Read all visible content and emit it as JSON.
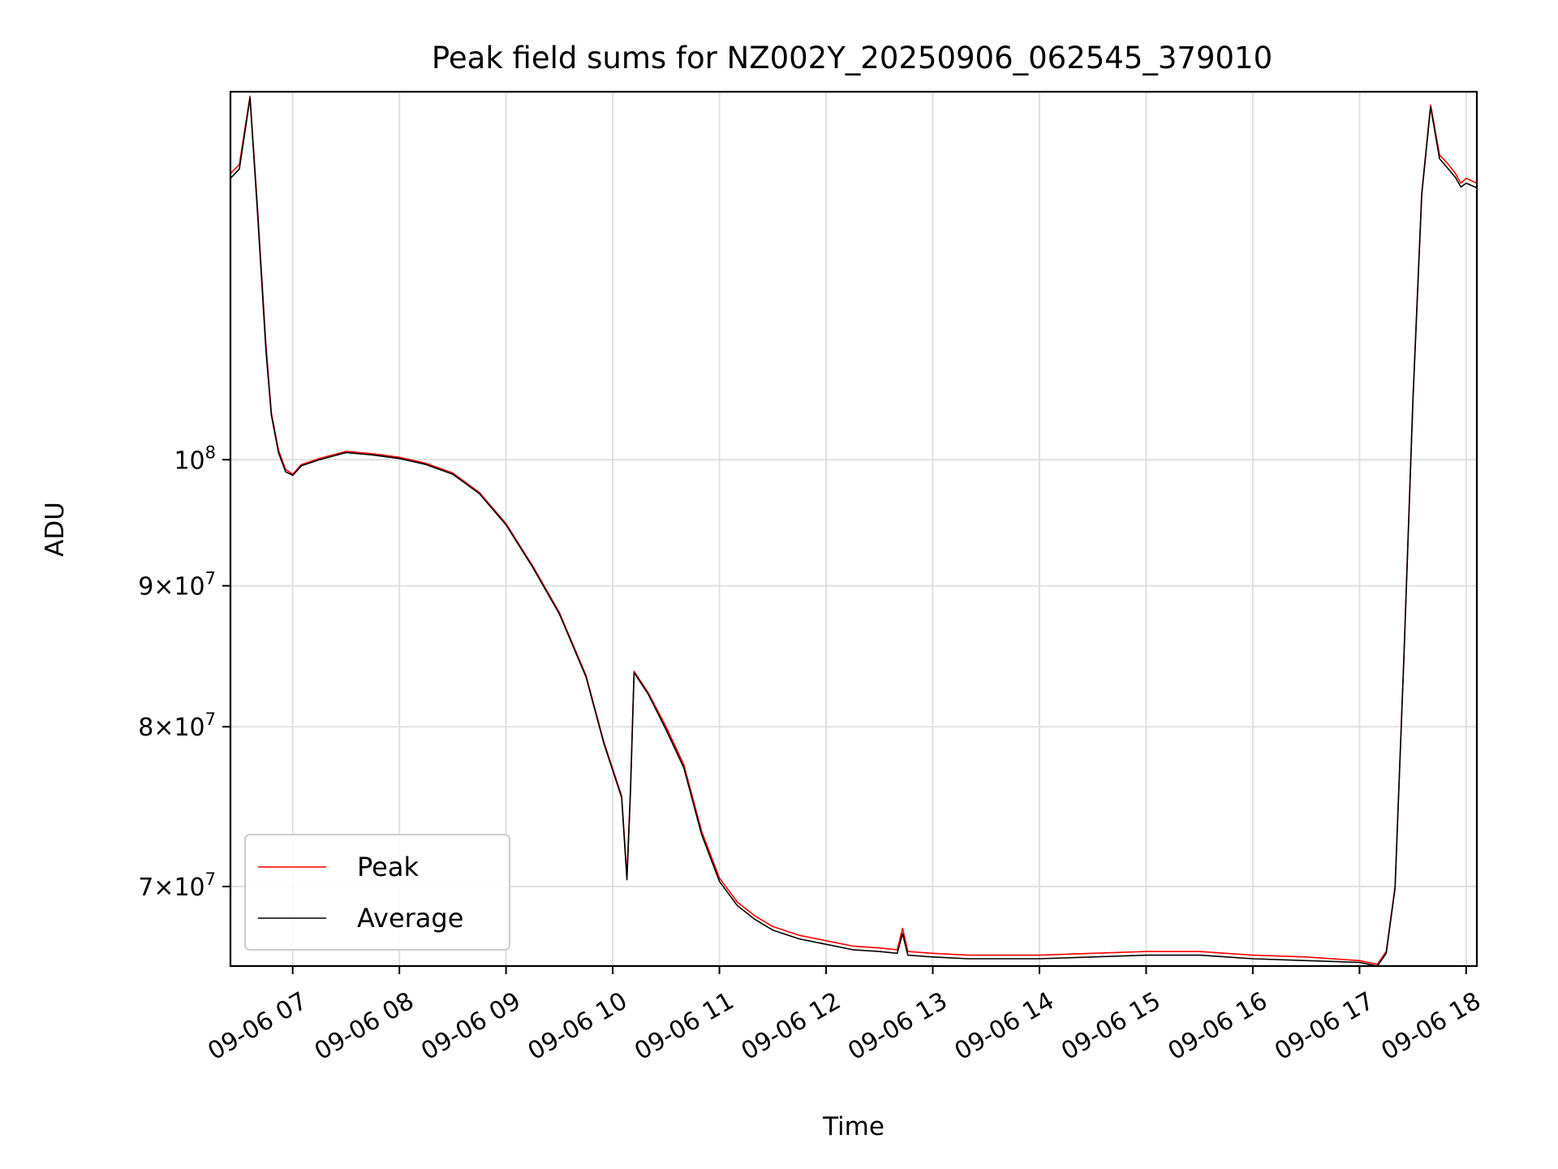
{
  "chart_data": {
    "type": "line",
    "title": "Peak field sums for NZ002Y_20250906_062545_379010",
    "xlabel": "Time",
    "ylabel": "ADU",
    "yscale": "log",
    "grid": true,
    "legend_position": "lower-left",
    "xlim": [
      "09-06 06:25",
      "09-06 18:06"
    ],
    "ylim": [
      65500000,
      136000000
    ],
    "x_ticks": [
      {
        "value": "09-06 07:00",
        "label": "09-06 07"
      },
      {
        "value": "09-06 08:00",
        "label": "09-06 08"
      },
      {
        "value": "09-06 09:00",
        "label": "09-06 09"
      },
      {
        "value": "09-06 10:00",
        "label": "09-06 10"
      },
      {
        "value": "09-06 11:00",
        "label": "09-06 11"
      },
      {
        "value": "09-06 12:00",
        "label": "09-06 12"
      },
      {
        "value": "09-06 13:00",
        "label": "09-06 13"
      },
      {
        "value": "09-06 14:00",
        "label": "09-06 14"
      },
      {
        "value": "09-06 15:00",
        "label": "09-06 15"
      },
      {
        "value": "09-06 16:00",
        "label": "09-06 16"
      },
      {
        "value": "09-06 17:00",
        "label": "09-06 17"
      },
      {
        "value": "09-06 18:00",
        "label": "09-06 18"
      }
    ],
    "y_ticks": [
      {
        "value": 70000000,
        "mantissa": "7",
        "times": "×",
        "base": "10",
        "exp": "7"
      },
      {
        "value": 80000000,
        "mantissa": "8",
        "times": "×",
        "base": "10",
        "exp": "7"
      },
      {
        "value": 90000000,
        "mantissa": "9",
        "times": "×",
        "base": "10",
        "exp": "7"
      },
      {
        "value": 100000000,
        "mantissa": "",
        "times": "",
        "base": "10",
        "exp": "8"
      }
    ],
    "series": [
      {
        "name": "Peak",
        "color": "#ff0000",
        "x": [
          "09-06 06:25",
          "09-06 06:30",
          "09-06 06:36",
          "09-06 06:40",
          "09-06 06:45",
          "09-06 06:48",
          "09-06 06:52",
          "09-06 06:56",
          "09-06 07:00",
          "09-06 07:05",
          "09-06 07:15",
          "09-06 07:30",
          "09-06 07:45",
          "09-06 08:00",
          "09-06 08:15",
          "09-06 08:30",
          "09-06 08:45",
          "09-06 09:00",
          "09-06 09:15",
          "09-06 09:30",
          "09-06 09:45",
          "09-06 09:55",
          "09-06 10:05",
          "09-06 10:08",
          "09-06 10:10",
          "09-06 10:12",
          "09-06 10:20",
          "09-06 10:30",
          "09-06 10:40",
          "09-06 10:50",
          "09-06 11:00",
          "09-06 11:10",
          "09-06 11:20",
          "09-06 11:30",
          "09-06 11:45",
          "09-06 12:00",
          "09-06 12:15",
          "09-06 12:30",
          "09-06 12:40",
          "09-06 12:43",
          "09-06 12:46",
          "09-06 13:00",
          "09-06 13:20",
          "09-06 13:40",
          "09-06 14:00",
          "09-06 14:30",
          "09-06 15:00",
          "09-06 15:30",
          "09-06 16:00",
          "09-06 16:30",
          "09-06 17:00",
          "09-06 17:10",
          "09-06 17:15",
          "09-06 17:20",
          "09-06 17:25",
          "09-06 17:30",
          "09-06 17:35",
          "09-06 17:40",
          "09-06 17:45",
          "09-06 17:50",
          "09-06 17:54",
          "09-06 17:57",
          "09-06 18:00",
          "09-06 18:06"
        ],
        "y": [
          127000000,
          128000000,
          135500000,
          124000000,
          110000000,
          104000000,
          100800000,
          99200000,
          98800000,
          99600000,
          100100000,
          100700000,
          100500000,
          100200000,
          99700000,
          98900000,
          97300000,
          94800000,
          91500000,
          88000000,
          83500000,
          79000000,
          75500000,
          70600000,
          76000000,
          83800000,
          82300000,
          80000000,
          77500000,
          73300000,
          70500000,
          69100000,
          68300000,
          67700000,
          67200000,
          66900000,
          66600000,
          66500000,
          66400000,
          67600000,
          66300000,
          66200000,
          66100000,
          66100000,
          66100000,
          66200000,
          66300000,
          66300000,
          66100000,
          66000000,
          65800000,
          65600000,
          66300000,
          70000000,
          85000000,
          105000000,
          125000000,
          134500000,
          129000000,
          128000000,
          127000000,
          126000000,
          126500000,
          126000000
        ]
      },
      {
        "name": "Average",
        "color": "#000000",
        "x": [
          "09-06 06:25",
          "09-06 06:30",
          "09-06 06:36",
          "09-06 06:40",
          "09-06 06:45",
          "09-06 06:48",
          "09-06 06:52",
          "09-06 06:56",
          "09-06 07:00",
          "09-06 07:05",
          "09-06 07:15",
          "09-06 07:30",
          "09-06 07:45",
          "09-06 08:00",
          "09-06 08:15",
          "09-06 08:30",
          "09-06 08:45",
          "09-06 09:00",
          "09-06 09:15",
          "09-06 09:30",
          "09-06 09:45",
          "09-06 09:55",
          "09-06 10:05",
          "09-06 10:08",
          "09-06 10:10",
          "09-06 10:12",
          "09-06 10:20",
          "09-06 10:30",
          "09-06 10:40",
          "09-06 10:50",
          "09-06 11:00",
          "09-06 11:10",
          "09-06 11:20",
          "09-06 11:30",
          "09-06 11:45",
          "09-06 12:00",
          "09-06 12:15",
          "09-06 12:30",
          "09-06 12:40",
          "09-06 12:43",
          "09-06 12:46",
          "09-06 13:00",
          "09-06 13:20",
          "09-06 13:40",
          "09-06 14:00",
          "09-06 14:30",
          "09-06 15:00",
          "09-06 15:30",
          "09-06 16:00",
          "09-06 16:30",
          "09-06 17:00",
          "09-06 17:10",
          "09-06 17:15",
          "09-06 17:20",
          "09-06 17:25",
          "09-06 17:30",
          "09-06 17:35",
          "09-06 17:40",
          "09-06 17:45",
          "09-06 17:50",
          "09-06 17:54",
          "09-06 17:57",
          "09-06 18:00",
          "09-06 18:06"
        ],
        "y": [
          126500000,
          127500000,
          135300000,
          123500000,
          109500000,
          103800000,
          100600000,
          99000000,
          98700000,
          99500000,
          100000000,
          100600000,
          100400000,
          100100000,
          99600000,
          98800000,
          97200000,
          94700000,
          91400000,
          87900000,
          83400000,
          78900000,
          75400000,
          70400000,
          75800000,
          83700000,
          82200000,
          79800000,
          77300000,
          73100000,
          70300000,
          68900000,
          68100000,
          67500000,
          67000000,
          66700000,
          66400000,
          66300000,
          66200000,
          67300000,
          66100000,
          66000000,
          65900000,
          65900000,
          65900000,
          66000000,
          66100000,
          66100000,
          65900000,
          65800000,
          65700000,
          65500000,
          66200000,
          69900000,
          84900000,
          104800000,
          124800000,
          134300000,
          128600000,
          127500000,
          126600000,
          125600000,
          126000000,
          125500000
        ]
      }
    ]
  }
}
